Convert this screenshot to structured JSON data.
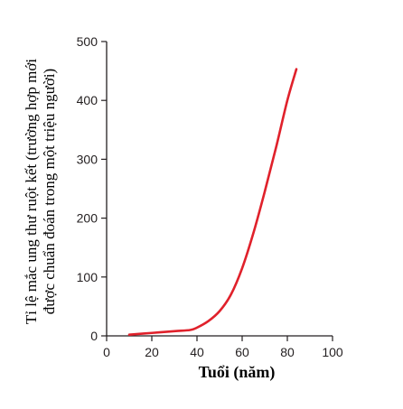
{
  "chart_data": {
    "type": "line",
    "xlabel": "Tuổi (năm)",
    "ylabel_lines": [
      "Tỉ lệ mắc ung thư ruột kết (trường hợp mới",
      "được chuẩn đoán trong một triệu người)"
    ],
    "xlim": [
      0,
      100
    ],
    "ylim": [
      0,
      500
    ],
    "x_ticks": [
      "0",
      "20",
      "40",
      "60",
      "80",
      "100"
    ],
    "y_ticks": [
      "0",
      "100",
      "200",
      "300",
      "400",
      "500"
    ],
    "grid": false,
    "series": [
      {
        "color": "#e0212b",
        "x": [
          10,
          20,
          30,
          37,
          40,
          45,
          50,
          55,
          60,
          65,
          70,
          75,
          80,
          84
        ],
        "y": [
          2,
          5,
          8,
          10,
          14,
          25,
          42,
          70,
          115,
          175,
          245,
          320,
          400,
          453
        ]
      }
    ]
  }
}
